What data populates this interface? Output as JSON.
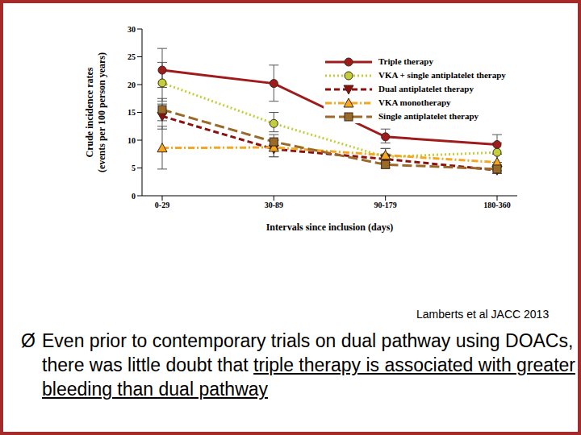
{
  "chart_data": {
    "type": "line",
    "xlabel": "Intervals since inclusion (days)",
    "ylabel": "Crude incidence rates (events per 100 person years)",
    "categories": [
      "0-29",
      "30-89",
      "90-179",
      "180-360"
    ],
    "ylim": [
      0,
      30
    ],
    "yticks": [
      0,
      5,
      10,
      15,
      20,
      25,
      30
    ],
    "grid": false,
    "legend": "upper right",
    "series": [
      {
        "name": "Triple therapy",
        "color": "#a01c1c",
        "marker": "circle",
        "line_style": "solid",
        "values": [
          22.6,
          20.2,
          10.6,
          9.2
        ],
        "error_low": [
          19.5,
          17,
          9.5,
          7.5
        ],
        "error_high": [
          26.5,
          23.5,
          12,
          11
        ]
      },
      {
        "name": "VKA + single antiplatelet therapy",
        "color": "#c2cf3a",
        "marker": "circle",
        "line_style": "dotted",
        "values": [
          20.3,
          13.0,
          7.0,
          7.8
        ],
        "error_low": [
          17,
          11.5,
          6,
          6
        ],
        "error_high": [
          24,
          15,
          8.5,
          9.5
        ]
      },
      {
        "name": "Dual antiplatelet therapy",
        "color": "#8b1010",
        "marker": "triangle_down",
        "line_style": "dashed",
        "values": [
          14.3,
          8.4,
          6.6,
          4.6
        ],
        "error_low": [
          12,
          7,
          6,
          4
        ],
        "error_high": [
          16.5,
          10,
          7.5,
          5.5
        ]
      },
      {
        "name": "VKA monotherapy",
        "color": "#f5a623",
        "marker": "triangle",
        "line_style": "dashdot",
        "values": [
          8.6,
          8.7,
          7.3,
          6.0
        ],
        "error_low": [
          4.8,
          7,
          6,
          4.5
        ],
        "error_high": [
          12.5,
          10,
          8.5,
          7.5
        ]
      },
      {
        "name": "Single antiplatelet therapy",
        "color": "#9a6a2a",
        "marker": "square",
        "line_style": "longdash",
        "values": [
          15.5,
          9.7,
          5.6,
          4.8
        ],
        "error_low": [
          13.5,
          8.5,
          5,
          4.5
        ],
        "error_high": [
          17.5,
          11,
          6.5,
          5.5
        ]
      }
    ]
  },
  "citation": "Lamberts et al JACC 2013",
  "bullet_symbol": "Ø",
  "bullet_text": "Even prior to contemporary trials on dual pathway using DOACs, there was little doubt that ",
  "bullet_underlined": "triple therapy is associated with greater bleeding than dual pathway"
}
